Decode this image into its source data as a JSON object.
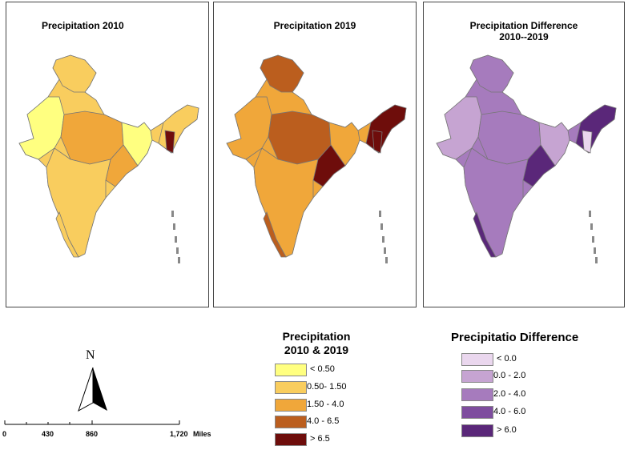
{
  "panels": [
    {
      "title": "Precipitation  2010"
    },
    {
      "title": "Precipitation 2019"
    },
    {
      "title_line1": "Precipitation Difference",
      "title_line2": "2010--2019"
    }
  ],
  "legend_precip": {
    "title_line1": "Precipitation",
    "title_line2": "2010 & 2019",
    "items": [
      {
        "label": "< 0.50",
        "color": "#ffff80"
      },
      {
        "label": "0.50- 1.50",
        "color": "#f9cd5e"
      },
      {
        "label": "1.50 - 4.0",
        "color": "#f0a73a"
      },
      {
        "label": "4.0 - 6.5",
        "color": "#bb5e1e"
      },
      {
        "label": "> 6.5",
        "color": "#6e0d0b"
      }
    ]
  },
  "legend_diff": {
    "title": "Precipitatio Difference",
    "items": [
      {
        "label": "< 0.0",
        "color": "#ead7ee"
      },
      {
        "label": "0.0 - 2.0",
        "color": "#c6a4d2"
      },
      {
        "label": "2.0 - 4.0",
        "color": "#a67bbd"
      },
      {
        "label": "4.0 - 6.0",
        "color": "#7e4d9e"
      },
      {
        "label": "> 6.0",
        "color": "#5a2779"
      }
    ]
  },
  "north_arrow": {
    "label": "N",
    "icon": "north-arrow-icon"
  },
  "scale_bar": {
    "ticks": [
      "0",
      "430",
      "860",
      "1,720"
    ],
    "units": "Miles"
  }
}
